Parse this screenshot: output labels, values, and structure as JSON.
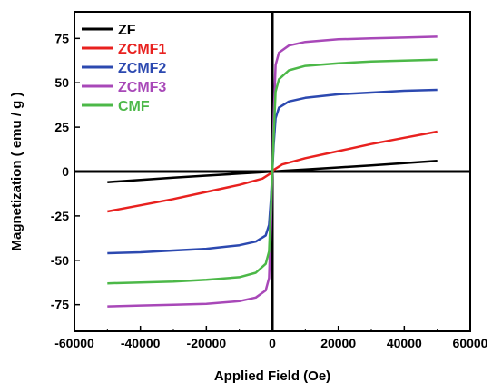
{
  "chart_data": {
    "type": "line",
    "title": "",
    "xlabel": "Applied Field (Oe)",
    "ylabel": "Magnetization ( emu / g )",
    "xlim": [
      -60000,
      60000
    ],
    "ylim": [
      -90,
      90
    ],
    "x_ticks": [
      -60000,
      -40000,
      -20000,
      0,
      20000,
      40000,
      60000
    ],
    "y_ticks": [
      -75,
      -50,
      -25,
      0,
      25,
      50,
      75
    ],
    "grid": false,
    "legend_position": "top-left",
    "reference_lines": [
      {
        "axis": "x",
        "value": 0
      },
      {
        "axis": "y",
        "value": 0
      }
    ],
    "series": [
      {
        "name": "ZF",
        "color": "#000000",
        "points": [
          [
            -50000,
            -6
          ],
          [
            -40000,
            -4.7
          ],
          [
            -30000,
            -3.5
          ],
          [
            -20000,
            -2.3
          ],
          [
            -10000,
            -1.2
          ],
          [
            -4000,
            -0.5
          ],
          [
            0,
            0
          ],
          [
            4000,
            0.5
          ],
          [
            10000,
            1.2
          ],
          [
            20000,
            2.3
          ],
          [
            30000,
            3.5
          ],
          [
            40000,
            4.7
          ],
          [
            50000,
            6
          ]
        ]
      },
      {
        "name": "ZCMF1",
        "color": "#e8211f",
        "points": [
          [
            -50000,
            -22.5
          ],
          [
            -40000,
            -19
          ],
          [
            -30000,
            -15.5
          ],
          [
            -20000,
            -11.5
          ],
          [
            -10000,
            -7.5
          ],
          [
            -3000,
            -4
          ],
          [
            -500,
            -1
          ],
          [
            0,
            0
          ],
          [
            500,
            1
          ],
          [
            3000,
            4
          ],
          [
            10000,
            7.5
          ],
          [
            20000,
            11.5
          ],
          [
            30000,
            15.5
          ],
          [
            40000,
            19
          ],
          [
            50000,
            22.5
          ]
        ]
      },
      {
        "name": "ZCMF2",
        "color": "#2c49b0",
        "points": [
          [
            -50000,
            -46
          ],
          [
            -40000,
            -45.5
          ],
          [
            -30000,
            -44.5
          ],
          [
            -20000,
            -43.5
          ],
          [
            -10000,
            -41.5
          ],
          [
            -5000,
            -39.5
          ],
          [
            -2000,
            -36
          ],
          [
            -1000,
            -30
          ],
          [
            -400,
            -15
          ],
          [
            0,
            0
          ],
          [
            400,
            15
          ],
          [
            1000,
            30
          ],
          [
            2000,
            36
          ],
          [
            5000,
            39.5
          ],
          [
            10000,
            41.5
          ],
          [
            20000,
            43.5
          ],
          [
            30000,
            44.5
          ],
          [
            40000,
            45.5
          ],
          [
            50000,
            46
          ]
        ]
      },
      {
        "name": "ZCMF3",
        "color": "#a848b8",
        "points": [
          [
            -50000,
            -76
          ],
          [
            -40000,
            -75.5
          ],
          [
            -30000,
            -75
          ],
          [
            -20000,
            -74.5
          ],
          [
            -10000,
            -73
          ],
          [
            -5000,
            -71
          ],
          [
            -2000,
            -67
          ],
          [
            -1000,
            -60
          ],
          [
            -400,
            -30
          ],
          [
            0,
            0
          ],
          [
            400,
            30
          ],
          [
            1000,
            60
          ],
          [
            2000,
            67
          ],
          [
            5000,
            71
          ],
          [
            10000,
            73
          ],
          [
            20000,
            74.5
          ],
          [
            30000,
            75
          ],
          [
            40000,
            75.5
          ],
          [
            50000,
            76
          ]
        ]
      },
      {
        "name": "CMF",
        "color": "#4cb848",
        "points": [
          [
            -50000,
            -63
          ],
          [
            -40000,
            -62.5
          ],
          [
            -30000,
            -62
          ],
          [
            -20000,
            -61
          ],
          [
            -10000,
            -59.5
          ],
          [
            -5000,
            -57
          ],
          [
            -2000,
            -52
          ],
          [
            -1000,
            -45
          ],
          [
            -400,
            -20
          ],
          [
            0,
            0
          ],
          [
            400,
            20
          ],
          [
            1000,
            45
          ],
          [
            2000,
            52
          ],
          [
            5000,
            57
          ],
          [
            10000,
            59.5
          ],
          [
            20000,
            61
          ],
          [
            30000,
            62
          ],
          [
            40000,
            62.5
          ],
          [
            50000,
            63
          ]
        ]
      }
    ]
  }
}
